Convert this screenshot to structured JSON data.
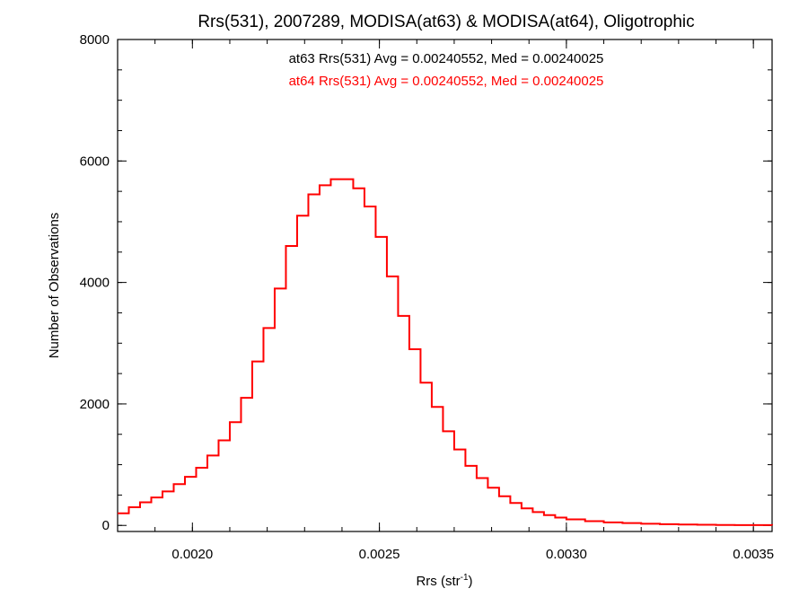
{
  "chart_data": {
    "type": "line",
    "title": "Rrs(531), 2007289, MODISA(at63) & MODISA(at64), Oligotrophic",
    "xlabel": "Rrs (str",
    "xlabel_sup": "-1",
    "xlabel_close": ")",
    "ylabel": "Number of Observations",
    "xlim": [
      0.0018,
      0.00355
    ],
    "ylim": [
      -100,
      8000
    ],
    "xticks": [
      0.002,
      0.0025,
      0.003,
      0.0035
    ],
    "xtick_labels": [
      "0.0020",
      "0.0025",
      "0.0030",
      "0.0035"
    ],
    "yticks": [
      0,
      2000,
      4000,
      6000,
      8000
    ],
    "ytick_labels": [
      "0",
      "2000",
      "4000",
      "6000",
      "8000"
    ],
    "grid": false,
    "line_style": "histogram-step",
    "annotations": [
      {
        "text": "at63 Rrs(531) Avg = 0.00240552, Med = 0.00240025",
        "color": "#000000"
      },
      {
        "text": "at64 Rrs(531) Avg = 0.00240552, Med = 0.00240025",
        "color": "#ff0000"
      }
    ],
    "series": [
      {
        "color": "#ff0000",
        "x": [
          0.0018,
          0.00183,
          0.00186,
          0.00189,
          0.00192,
          0.00195,
          0.00198,
          0.00201,
          0.00204,
          0.00207,
          0.0021,
          0.00213,
          0.00216,
          0.00219,
          0.00222,
          0.00225,
          0.00228,
          0.00231,
          0.00234,
          0.00237,
          0.0024,
          0.00243,
          0.00246,
          0.00249,
          0.00252,
          0.00255,
          0.00258,
          0.00261,
          0.00264,
          0.00267,
          0.0027,
          0.00273,
          0.00276,
          0.00279,
          0.00282,
          0.00285,
          0.00288,
          0.00291,
          0.00294,
          0.00297,
          0.003,
          0.00305,
          0.0031,
          0.00315,
          0.0032,
          0.00325,
          0.0033,
          0.00335,
          0.0034,
          0.00345,
          0.0035,
          0.00355
        ],
        "y": [
          200,
          300,
          380,
          460,
          560,
          680,
          800,
          950,
          1150,
          1400,
          1700,
          2100,
          2700,
          3250,
          3900,
          4600,
          5100,
          5450,
          5600,
          5700,
          5700,
          5550,
          5250,
          4750,
          4100,
          3450,
          2900,
          2350,
          1950,
          1550,
          1250,
          980,
          780,
          620,
          480,
          370,
          280,
          220,
          170,
          130,
          100,
          70,
          50,
          38,
          28,
          20,
          15,
          10,
          8,
          6,
          5,
          4
        ]
      }
    ]
  }
}
